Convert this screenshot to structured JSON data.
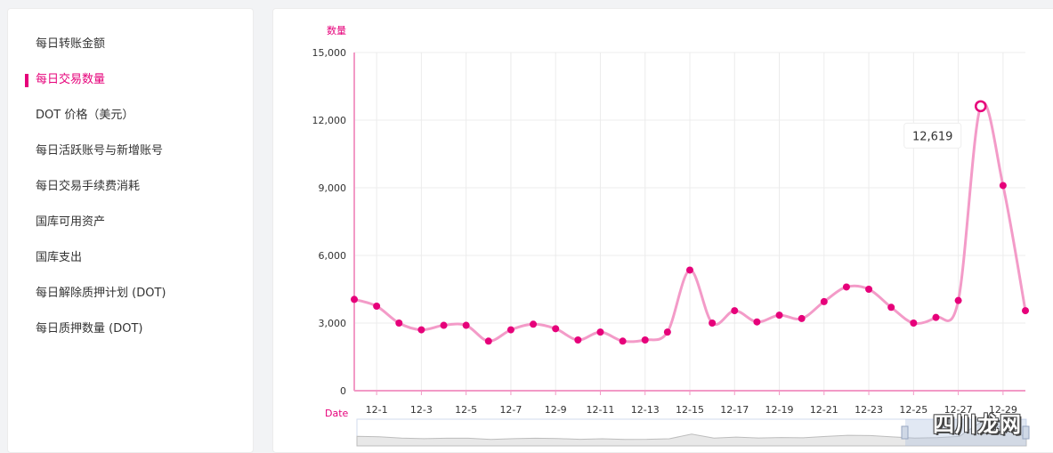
{
  "sidebar": {
    "items": [
      {
        "label": "每日转账金额",
        "active": false
      },
      {
        "label": "每日交易数量",
        "active": true
      },
      {
        "label": "DOT 价格（美元）",
        "active": false
      },
      {
        "label": "每日活跃账号与新增账号",
        "active": false
      },
      {
        "label": "每日交易手续费消耗",
        "active": false
      },
      {
        "label": "国库可用资产",
        "active": false
      },
      {
        "label": "国库支出",
        "active": false
      },
      {
        "label": "每日解除质押计划 (DOT)",
        "active": false
      },
      {
        "label": "每日质押数量 (DOT)",
        "active": false
      }
    ]
  },
  "chart_data": {
    "type": "line",
    "xlabel": "Date",
    "ylabel": "数量",
    "ylim": [
      0,
      15000
    ],
    "yticks": [
      0,
      3000,
      6000,
      9000,
      12000,
      15000
    ],
    "ytick_labels": [
      "0",
      "3,000",
      "6,000",
      "9,000",
      "12,000",
      "15,000"
    ],
    "x": [
      "11-30",
      "12-1",
      "12-2",
      "12-3",
      "12-4",
      "12-5",
      "12-6",
      "12-7",
      "12-8",
      "12-9",
      "12-10",
      "12-11",
      "12-12",
      "12-13",
      "12-14",
      "12-15",
      "12-16",
      "12-17",
      "12-18",
      "12-19",
      "12-20",
      "12-21",
      "12-22",
      "12-23",
      "12-24",
      "12-25",
      "12-26",
      "12-27",
      "12-28",
      "12-29",
      "12-30"
    ],
    "xtick_labels": [
      "12-1",
      "12-3",
      "12-5",
      "12-7",
      "12-9",
      "12-11",
      "12-13",
      "12-15",
      "12-17",
      "12-19",
      "12-21",
      "12-23",
      "12-25",
      "12-27",
      "12-29"
    ],
    "series": [
      {
        "values": [
          4050,
          3750,
          3000,
          2700,
          2900,
          2900,
          2200,
          2700,
          2950,
          2750,
          2250,
          2600,
          2200,
          2250,
          2600,
          5350,
          3000,
          3550,
          3050,
          3350,
          3200,
          3950,
          4600,
          4500,
          3700,
          3000,
          3250,
          4000,
          12619,
          9100,
          3550
        ]
      }
    ],
    "tooltip": {
      "value": "12,619",
      "index": 28
    },
    "colors": {
      "line": "#f39bc8",
      "point": "#e6007a",
      "axis": "#f29ac6",
      "grid": "#ececec",
      "label": "#e6007a"
    },
    "grid": true
  },
  "watermark": "四川龙网"
}
